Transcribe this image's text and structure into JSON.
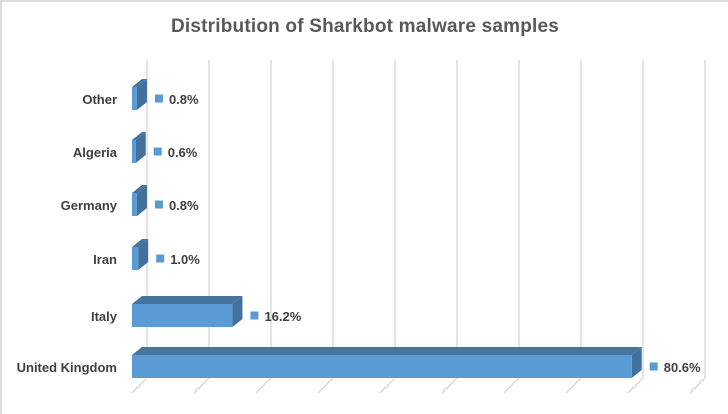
{
  "chart_data": {
    "type": "bar",
    "subtype": "3d-horizontal-bar",
    "title": "Distribution of Sharkbot malware samples",
    "unit": "%",
    "category_axis_order": "top-to-bottom",
    "categories": [
      "Other",
      "Algeria",
      "Germany",
      "Iran",
      "Italy",
      "United Kingdom"
    ],
    "values": [
      0.8,
      0.6,
      0.8,
      1.0,
      16.2,
      80.6
    ],
    "data_labels": [
      "0.8%",
      "0.6%",
      "0.8%",
      "1.0%",
      "16.2%",
      "80.6%"
    ],
    "data_labels_show_legend_key": true,
    "xlabel": "",
    "ylabel": "",
    "xlim": [
      0,
      90
    ],
    "gridline_interval": 10,
    "grid": true,
    "legend_position": "none",
    "colors": {
      "bar_front": "#5B9BD5",
      "bar_top": "#46749E",
      "bar_side": "#41719C",
      "legend_key": "#5B9BD5",
      "gridline": "#D9D9D9",
      "title_text": "#595959",
      "label_text": "#3F3F3F",
      "background": "#FFFFFF",
      "frame_border": "#DCDCDC"
    }
  }
}
